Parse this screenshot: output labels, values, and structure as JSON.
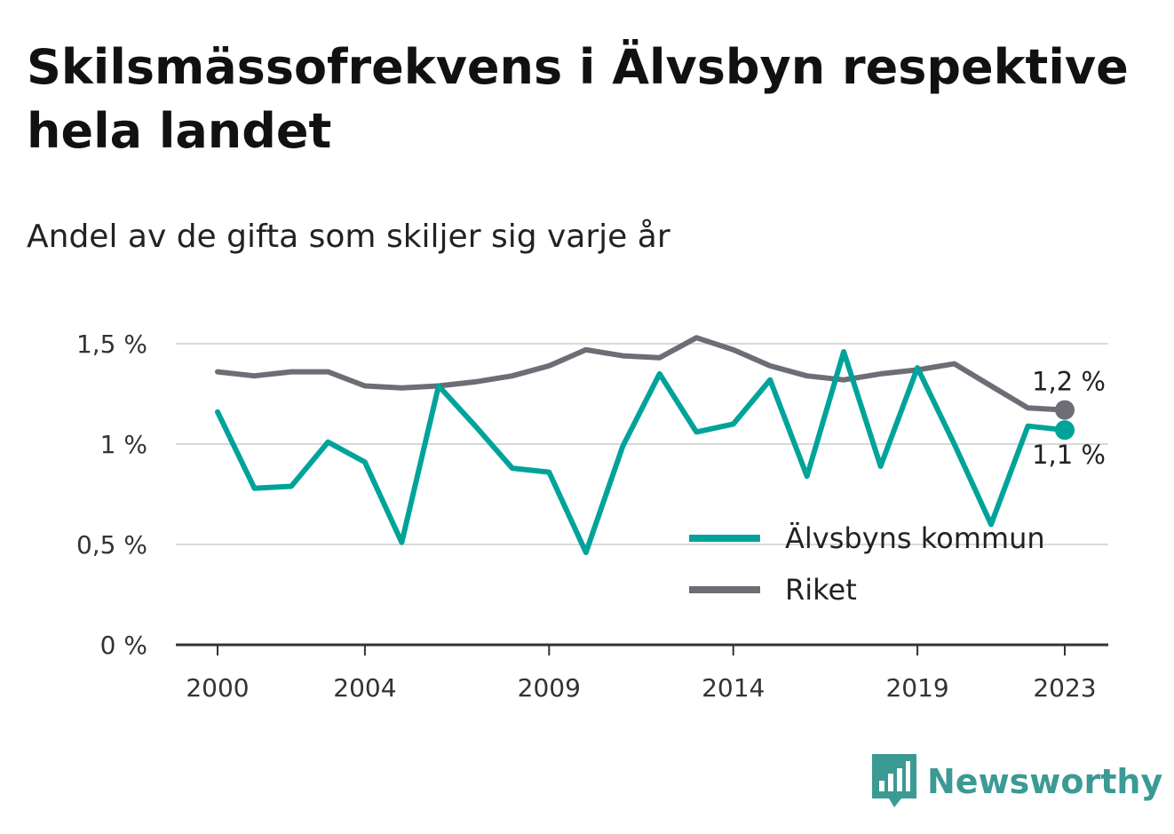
{
  "title": "Skilsmässofrekvens i Älvsbyn respektive hela landet",
  "subtitle": "Andel av de gifta som skiljer sig varje år",
  "brand": {
    "name": "Newsworthy",
    "icon": "bar-chart-speech-bubble-icon",
    "color": "#3b9a94"
  },
  "chart_data": {
    "type": "line",
    "x": [
      2000,
      2001,
      2002,
      2003,
      2004,
      2005,
      2006,
      2007,
      2008,
      2009,
      2010,
      2011,
      2012,
      2013,
      2014,
      2015,
      2016,
      2017,
      2018,
      2019,
      2020,
      2021,
      2022,
      2023
    ],
    "series": [
      {
        "name": "Älvsbyns kommun",
        "color": "#00a39a",
        "values": [
          1.16,
          0.78,
          0.79,
          1.01,
          0.91,
          0.51,
          1.29,
          1.09,
          0.88,
          0.86,
          0.46,
          0.99,
          1.35,
          1.06,
          1.1,
          1.32,
          0.84,
          1.46,
          0.89,
          1.38,
          1.0,
          0.6,
          1.09,
          1.07
        ],
        "end_label": "1,1 %"
      },
      {
        "name": "Riket",
        "color": "#6e6d75",
        "values": [
          1.36,
          1.34,
          1.36,
          1.36,
          1.29,
          1.28,
          1.29,
          1.31,
          1.34,
          1.39,
          1.47,
          1.44,
          1.43,
          1.53,
          1.47,
          1.39,
          1.34,
          1.32,
          1.35,
          1.37,
          1.4,
          1.29,
          1.18,
          1.17
        ],
        "end_label": "1,2 %"
      }
    ],
    "y_ticks": [
      {
        "value": 0,
        "label": "0 %"
      },
      {
        "value": 0.5,
        "label": "0,5 %"
      },
      {
        "value": 1,
        "label": "1 %"
      },
      {
        "value": 1.5,
        "label": "1,5 %"
      }
    ],
    "x_ticks": [
      {
        "value": 2000,
        "label": "2000"
      },
      {
        "value": 2004,
        "label": "2004"
      },
      {
        "value": 2009,
        "label": "2009"
      },
      {
        "value": 2014,
        "label": "2014"
      },
      {
        "value": 2019,
        "label": "2019"
      },
      {
        "value": 2023,
        "label": "2023"
      }
    ],
    "xlim": [
      2000,
      2023
    ],
    "ylim": [
      0,
      1.5
    ],
    "grid": true,
    "legend_position": "bottom-right"
  }
}
